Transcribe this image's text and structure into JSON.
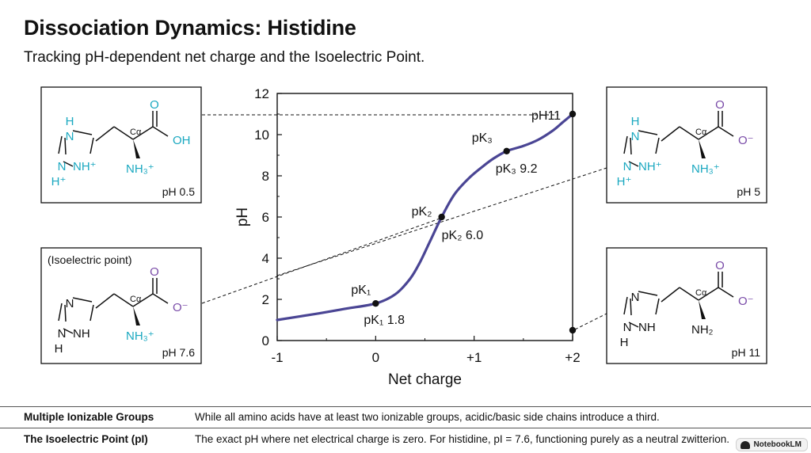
{
  "header": {
    "title": "Dissociation Dynamics: Histidine",
    "subtitle": "Tracking pH-dependent net charge and the Isoelectric Point."
  },
  "chart_data": {
    "type": "line",
    "xlabel": "Net charge",
    "ylabel": "pH",
    "xlim": [
      -1,
      2
    ],
    "ylim": [
      0,
      12
    ],
    "x_ticks": [
      "-1",
      "0",
      "+1",
      "+2"
    ],
    "y_ticks": [
      "0",
      "2",
      "4",
      "6",
      "8",
      "10",
      "12"
    ],
    "line_color": "#4a4594",
    "curve": [
      {
        "x": -1.0,
        "y": 1.0
      },
      {
        "x": -0.6,
        "y": 1.3
      },
      {
        "x": -0.3,
        "y": 1.55
      },
      {
        "x": 0.0,
        "y": 1.8
      },
      {
        "x": 0.2,
        "y": 2.25
      },
      {
        "x": 0.35,
        "y": 3.0
      },
      {
        "x": 0.45,
        "y": 3.8
      },
      {
        "x": 0.55,
        "y": 4.8
      },
      {
        "x": 0.67,
        "y": 6.0
      },
      {
        "x": 0.8,
        "y": 7.1
      },
      {
        "x": 0.95,
        "y": 7.9
      },
      {
        "x": 1.1,
        "y": 8.5
      },
      {
        "x": 1.2,
        "y": 8.85
      },
      {
        "x": 1.33,
        "y": 9.2
      },
      {
        "x": 1.5,
        "y": 9.45
      },
      {
        "x": 1.65,
        "y": 9.75
      },
      {
        "x": 1.8,
        "y": 10.2
      },
      {
        "x": 1.9,
        "y": 10.6
      },
      {
        "x": 2.0,
        "y": 11.0
      }
    ],
    "points": [
      {
        "x": 0.0,
        "y": 1.8,
        "label_top": "pK₁",
        "label_bottom": "pK₁ 1.8"
      },
      {
        "x": 0.67,
        "y": 6.0,
        "label_top": "pK₂",
        "label_bottom": "pK₂ 6.0"
      },
      {
        "x": 1.33,
        "y": 9.2,
        "label_top": "pK₃",
        "label_bottom": "pK₃ 9.2"
      },
      {
        "x": 2.0,
        "y": 11.0,
        "label_top": "pH11",
        "label_bottom": ""
      },
      {
        "x": 2.0,
        "y": 0.5,
        "label_top": "",
        "label_bottom": ""
      }
    ]
  },
  "structures": [
    {
      "id": "ph05",
      "caption": "pH 0.5",
      "note": "",
      "alpha": "Cα",
      "ring_n_top": "H",
      "ring_n_top2": "N",
      "ring_nh": "NH⁺",
      "ring_n_bottom": "N",
      "ring_h_bottom": "H⁺",
      "carbonyl_o": "O",
      "acid": "OH",
      "amine": "NH₃⁺"
    },
    {
      "id": "ph5",
      "caption": "pH 5",
      "note": "",
      "alpha": "Cα",
      "ring_n_top": "H",
      "ring_n_top2": "N",
      "ring_nh": "NH⁺",
      "ring_n_bottom": "N",
      "ring_h_bottom": "H⁺",
      "carbonyl_o": "O",
      "acid": "O⁻",
      "amine": "NH₃⁺"
    },
    {
      "id": "ph76",
      "caption": "pH 7.6",
      "note": "(Isoelectric point)",
      "alpha": "Cα",
      "ring_n_top": "",
      "ring_n_top2": "N",
      "ring_nh": "NH",
      "ring_n_bottom": "N",
      "ring_h_bottom": "H",
      "carbonyl_o": "O",
      "acid": "O⁻",
      "amine": "NH₃⁺"
    },
    {
      "id": "ph11",
      "caption": "pH 11",
      "note": "",
      "alpha": "Cα",
      "ring_n_top": "",
      "ring_n_top2": "N",
      "ring_nh": "NH",
      "ring_n_bottom": "N",
      "ring_h_bottom": "H",
      "carbonyl_o": "O",
      "acid": "O⁻",
      "amine": "NH₂"
    }
  ],
  "colors": {
    "teal": "#1aa8c0",
    "purple": "#7a4ca8",
    "black": "#111111"
  },
  "footer": [
    {
      "term": "Multiple Ionizable Groups",
      "desc": "While all amino acids have at least two ionizable groups, acidic/basic side chains introduce a third."
    },
    {
      "term": "The Isoelectric Point (pI)",
      "desc": "The exact pH where net electrical charge is zero. For histidine, pI = 7.6, functioning purely as a neutral zwitterion."
    }
  ],
  "badge": {
    "label": "NotebookLM"
  }
}
